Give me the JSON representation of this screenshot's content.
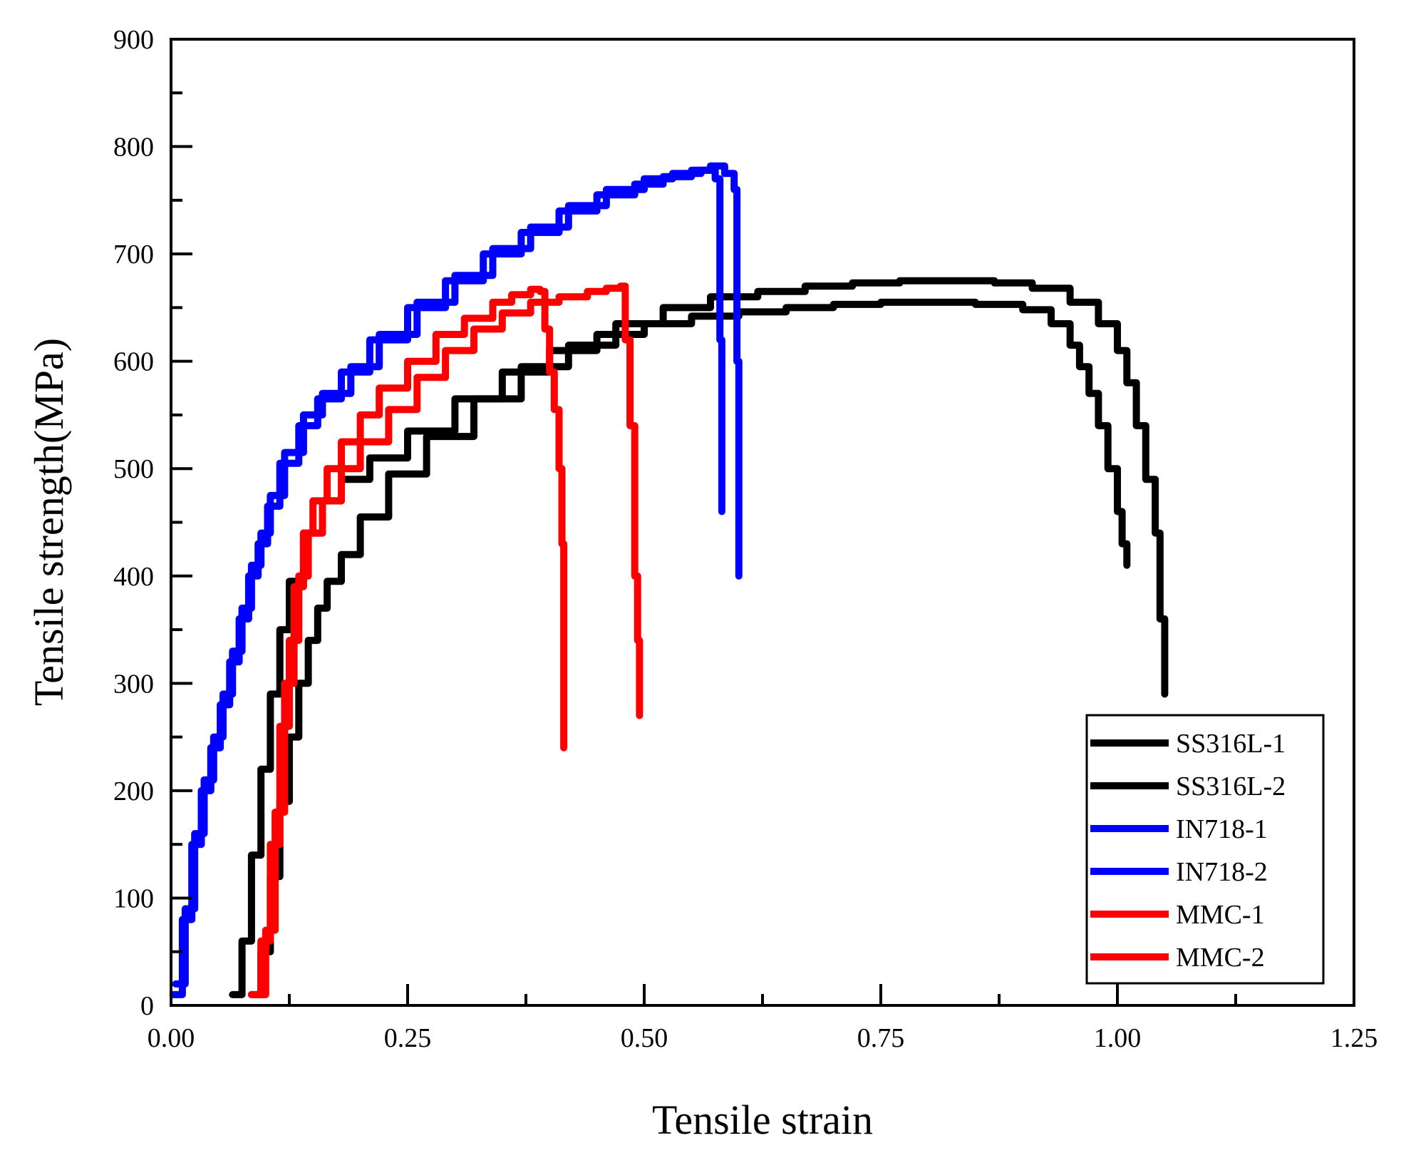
{
  "chart_data": {
    "type": "line",
    "title": "",
    "xlabel": "Tensile strain",
    "ylabel": "Tensile strength(MPa)",
    "xlim": [
      0,
      1.25
    ],
    "ylim": [
      0,
      900
    ],
    "x_ticks": [
      "0.00",
      "0.25",
      "0.50",
      "0.75",
      "1.00",
      "1.25"
    ],
    "y_ticks": [
      "0",
      "100",
      "200",
      "300",
      "400",
      "500",
      "600",
      "700",
      "800",
      "900"
    ],
    "grid": false,
    "legend_position": "bottom-right",
    "series": [
      {
        "name": "SS316L-1",
        "color": "#000000",
        "x": [
          0.065,
          0.075,
          0.085,
          0.095,
          0.105,
          0.115,
          0.125,
          0.14,
          0.16,
          0.18,
          0.21,
          0.25,
          0.3,
          0.35,
          0.4,
          0.45,
          0.5,
          0.55,
          0.6,
          0.65,
          0.7,
          0.75,
          0.8,
          0.85,
          0.9,
          0.93,
          0.95,
          0.96,
          0.97,
          0.98,
          0.99,
          1.0,
          1.005,
          1.01
        ],
        "y": [
          10,
          60,
          140,
          220,
          290,
          350,
          395,
          440,
          470,
          490,
          510,
          535,
          565,
          590,
          610,
          625,
          635,
          642,
          646,
          650,
          653,
          655,
          655,
          653,
          648,
          635,
          615,
          595,
          570,
          540,
          500,
          460,
          430,
          410
        ]
      },
      {
        "name": "SS316L-2",
        "color": "#000000",
        "x": [
          0.085,
          0.095,
          0.105,
          0.115,
          0.125,
          0.135,
          0.145,
          0.155,
          0.165,
          0.18,
          0.2,
          0.23,
          0.27,
          0.32,
          0.37,
          0.42,
          0.47,
          0.52,
          0.57,
          0.62,
          0.67,
          0.72,
          0.77,
          0.82,
          0.87,
          0.91,
          0.95,
          0.98,
          1.0,
          1.01,
          1.02,
          1.03,
          1.04,
          1.045,
          1.05
        ],
        "y": [
          10,
          50,
          120,
          190,
          250,
          300,
          340,
          370,
          395,
          420,
          455,
          495,
          530,
          565,
          595,
          615,
          635,
          650,
          660,
          665,
          670,
          673,
          675,
          675,
          673,
          668,
          655,
          635,
          610,
          580,
          540,
          490,
          440,
          360,
          290
        ]
      },
      {
        "name": "IN718-1",
        "color": "#0000ff",
        "x": [
          0.005,
          0.015,
          0.025,
          0.035,
          0.045,
          0.055,
          0.065,
          0.075,
          0.085,
          0.095,
          0.105,
          0.12,
          0.14,
          0.16,
          0.19,
          0.22,
          0.26,
          0.3,
          0.34,
          0.38,
          0.42,
          0.46,
          0.5,
          0.53,
          0.56,
          0.575,
          0.58,
          0.582
        ],
        "y": [
          20,
          90,
          160,
          210,
          250,
          290,
          330,
          370,
          410,
          440,
          475,
          515,
          550,
          570,
          595,
          625,
          655,
          680,
          705,
          725,
          745,
          760,
          770,
          775,
          778,
          770,
          620,
          460
        ]
      },
      {
        "name": "IN718-2",
        "color": "#0000ff",
        "x": [
          0.002,
          0.012,
          0.022,
          0.032,
          0.042,
          0.052,
          0.062,
          0.072,
          0.082,
          0.092,
          0.102,
          0.115,
          0.135,
          0.155,
          0.18,
          0.21,
          0.25,
          0.29,
          0.33,
          0.37,
          0.41,
          0.45,
          0.49,
          0.52,
          0.55,
          0.57,
          0.585,
          0.595,
          0.598,
          0.6
        ],
        "y": [
          10,
          80,
          150,
          200,
          240,
          280,
          320,
          360,
          400,
          430,
          465,
          505,
          540,
          565,
          590,
          620,
          650,
          675,
          700,
          720,
          740,
          755,
          765,
          772,
          778,
          782,
          775,
          760,
          600,
          400
        ]
      },
      {
        "name": "MMC-1",
        "color": "#ff0000",
        "x": [
          0.09,
          0.1,
          0.11,
          0.12,
          0.13,
          0.14,
          0.15,
          0.165,
          0.18,
          0.2,
          0.22,
          0.25,
          0.28,
          0.31,
          0.34,
          0.36,
          0.38,
          0.39,
          0.395,
          0.4,
          0.405,
          0.41,
          0.413,
          0.415
        ],
        "y": [
          10,
          70,
          180,
          300,
          390,
          440,
          470,
          500,
          525,
          550,
          575,
          600,
          625,
          640,
          655,
          662,
          667,
          665,
          630,
          590,
          555,
          500,
          430,
          240
        ]
      },
      {
        "name": "MMC-2",
        "color": "#ff0000",
        "x": [
          0.085,
          0.095,
          0.105,
          0.115,
          0.125,
          0.135,
          0.145,
          0.16,
          0.18,
          0.2,
          0.23,
          0.26,
          0.29,
          0.32,
          0.35,
          0.38,
          0.41,
          0.44,
          0.46,
          0.475,
          0.48,
          0.485,
          0.49,
          0.493,
          0.495
        ],
        "y": [
          10,
          60,
          150,
          260,
          340,
          400,
          440,
          470,
          500,
          525,
          555,
          585,
          610,
          630,
          645,
          655,
          660,
          665,
          668,
          670,
          620,
          540,
          400,
          340,
          270
        ]
      }
    ]
  }
}
